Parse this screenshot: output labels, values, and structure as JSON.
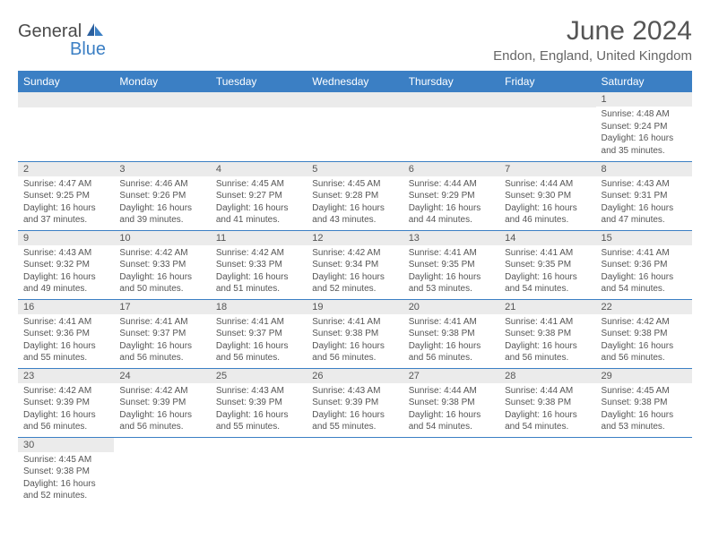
{
  "logo": {
    "text1": "General",
    "text2": "Blue"
  },
  "title": "June 2024",
  "location": "Endon, England, United Kingdom",
  "colors": {
    "header_bg": "#3b7fc4",
    "header_text": "#ffffff",
    "daynum_bg": "#ebebeb",
    "border": "#3b7fc4",
    "body_text": "#555555"
  },
  "weekdays": [
    "Sunday",
    "Monday",
    "Tuesday",
    "Wednesday",
    "Thursday",
    "Friday",
    "Saturday"
  ],
  "weeks": [
    [
      null,
      null,
      null,
      null,
      null,
      null,
      {
        "n": "1",
        "sr": "4:48 AM",
        "ss": "9:24 PM",
        "dl": "16 hours and 35 minutes."
      }
    ],
    [
      {
        "n": "2",
        "sr": "4:47 AM",
        "ss": "9:25 PM",
        "dl": "16 hours and 37 minutes."
      },
      {
        "n": "3",
        "sr": "4:46 AM",
        "ss": "9:26 PM",
        "dl": "16 hours and 39 minutes."
      },
      {
        "n": "4",
        "sr": "4:45 AM",
        "ss": "9:27 PM",
        "dl": "16 hours and 41 minutes."
      },
      {
        "n": "5",
        "sr": "4:45 AM",
        "ss": "9:28 PM",
        "dl": "16 hours and 43 minutes."
      },
      {
        "n": "6",
        "sr": "4:44 AM",
        "ss": "9:29 PM",
        "dl": "16 hours and 44 minutes."
      },
      {
        "n": "7",
        "sr": "4:44 AM",
        "ss": "9:30 PM",
        "dl": "16 hours and 46 minutes."
      },
      {
        "n": "8",
        "sr": "4:43 AM",
        "ss": "9:31 PM",
        "dl": "16 hours and 47 minutes."
      }
    ],
    [
      {
        "n": "9",
        "sr": "4:43 AM",
        "ss": "9:32 PM",
        "dl": "16 hours and 49 minutes."
      },
      {
        "n": "10",
        "sr": "4:42 AM",
        "ss": "9:33 PM",
        "dl": "16 hours and 50 minutes."
      },
      {
        "n": "11",
        "sr": "4:42 AM",
        "ss": "9:33 PM",
        "dl": "16 hours and 51 minutes."
      },
      {
        "n": "12",
        "sr": "4:42 AM",
        "ss": "9:34 PM",
        "dl": "16 hours and 52 minutes."
      },
      {
        "n": "13",
        "sr": "4:41 AM",
        "ss": "9:35 PM",
        "dl": "16 hours and 53 minutes."
      },
      {
        "n": "14",
        "sr": "4:41 AM",
        "ss": "9:35 PM",
        "dl": "16 hours and 54 minutes."
      },
      {
        "n": "15",
        "sr": "4:41 AM",
        "ss": "9:36 PM",
        "dl": "16 hours and 54 minutes."
      }
    ],
    [
      {
        "n": "16",
        "sr": "4:41 AM",
        "ss": "9:36 PM",
        "dl": "16 hours and 55 minutes."
      },
      {
        "n": "17",
        "sr": "4:41 AM",
        "ss": "9:37 PM",
        "dl": "16 hours and 56 minutes."
      },
      {
        "n": "18",
        "sr": "4:41 AM",
        "ss": "9:37 PM",
        "dl": "16 hours and 56 minutes."
      },
      {
        "n": "19",
        "sr": "4:41 AM",
        "ss": "9:38 PM",
        "dl": "16 hours and 56 minutes."
      },
      {
        "n": "20",
        "sr": "4:41 AM",
        "ss": "9:38 PM",
        "dl": "16 hours and 56 minutes."
      },
      {
        "n": "21",
        "sr": "4:41 AM",
        "ss": "9:38 PM",
        "dl": "16 hours and 56 minutes."
      },
      {
        "n": "22",
        "sr": "4:42 AM",
        "ss": "9:38 PM",
        "dl": "16 hours and 56 minutes."
      }
    ],
    [
      {
        "n": "23",
        "sr": "4:42 AM",
        "ss": "9:39 PM",
        "dl": "16 hours and 56 minutes."
      },
      {
        "n": "24",
        "sr": "4:42 AM",
        "ss": "9:39 PM",
        "dl": "16 hours and 56 minutes."
      },
      {
        "n": "25",
        "sr": "4:43 AM",
        "ss": "9:39 PM",
        "dl": "16 hours and 55 minutes."
      },
      {
        "n": "26",
        "sr": "4:43 AM",
        "ss": "9:39 PM",
        "dl": "16 hours and 55 minutes."
      },
      {
        "n": "27",
        "sr": "4:44 AM",
        "ss": "9:38 PM",
        "dl": "16 hours and 54 minutes."
      },
      {
        "n": "28",
        "sr": "4:44 AM",
        "ss": "9:38 PM",
        "dl": "16 hours and 54 minutes."
      },
      {
        "n": "29",
        "sr": "4:45 AM",
        "ss": "9:38 PM",
        "dl": "16 hours and 53 minutes."
      }
    ],
    [
      {
        "n": "30",
        "sr": "4:45 AM",
        "ss": "9:38 PM",
        "dl": "16 hours and 52 minutes."
      },
      null,
      null,
      null,
      null,
      null,
      null
    ]
  ],
  "labels": {
    "sunrise": "Sunrise:",
    "sunset": "Sunset:",
    "daylight": "Daylight:"
  }
}
